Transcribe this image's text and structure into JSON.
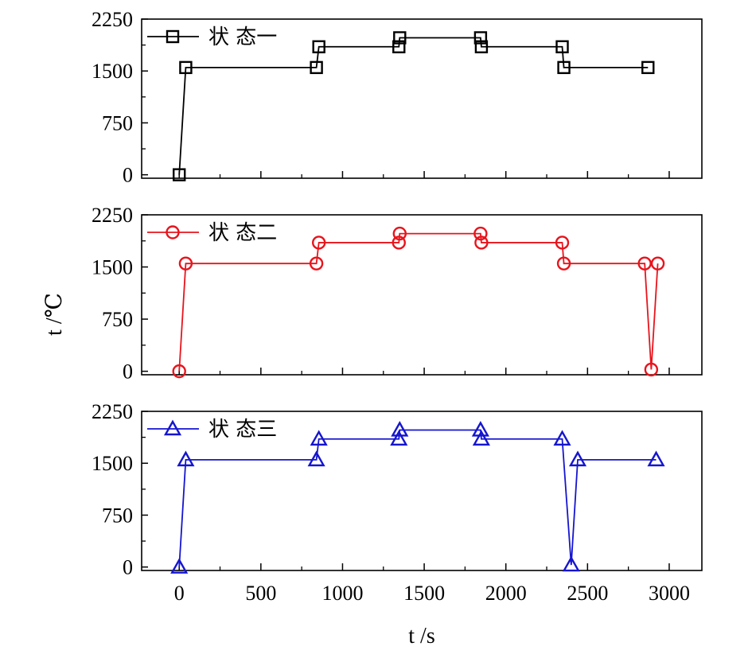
{
  "chart_data": {
    "type": "line",
    "layout": "stacked-panels-shared-x",
    "xlabel": "t /s",
    "ylabel": "t /℃",
    "xlim": [
      -230,
      3200
    ],
    "ylim": [
      -50,
      2250
    ],
    "x_ticks": [
      0,
      500,
      1000,
      1500,
      2000,
      2500,
      3000
    ],
    "y_ticks": [
      0,
      750,
      1500,
      2250
    ],
    "legend_position": "top-left",
    "panels": [
      {
        "series": [
          {
            "name": "状 态一",
            "color": "#000000",
            "marker": "square",
            "x": [
              0,
              40,
              840,
              855,
              1345,
              1350,
              1845,
              1850,
              2345,
              2355,
              2870
            ],
            "y": [
              0,
              1550,
              1550,
              1850,
              1850,
              1980,
              1980,
              1850,
              1850,
              1550,
              1550
            ]
          }
        ]
      },
      {
        "series": [
          {
            "name": "状 态二",
            "color": "#e8141c",
            "marker": "circle",
            "x": [
              0,
              40,
              840,
              855,
              1345,
              1350,
              1845,
              1850,
              2345,
              2355,
              2850,
              2890,
              2930
            ],
            "y": [
              0,
              1550,
              1550,
              1850,
              1850,
              1980,
              1980,
              1850,
              1850,
              1550,
              1550,
              25,
              1550
            ]
          }
        ]
      },
      {
        "series": [
          {
            "name": "状 态三",
            "color": "#1515d0",
            "marker": "triangle",
            "x": [
              0,
              40,
              840,
              855,
              1345,
              1350,
              1845,
              1850,
              2345,
              2400,
              2440,
              2920
            ],
            "y": [
              0,
              1550,
              1550,
              1850,
              1850,
              1980,
              1980,
              1850,
              1850,
              30,
              1550,
              1550
            ]
          }
        ]
      }
    ]
  }
}
